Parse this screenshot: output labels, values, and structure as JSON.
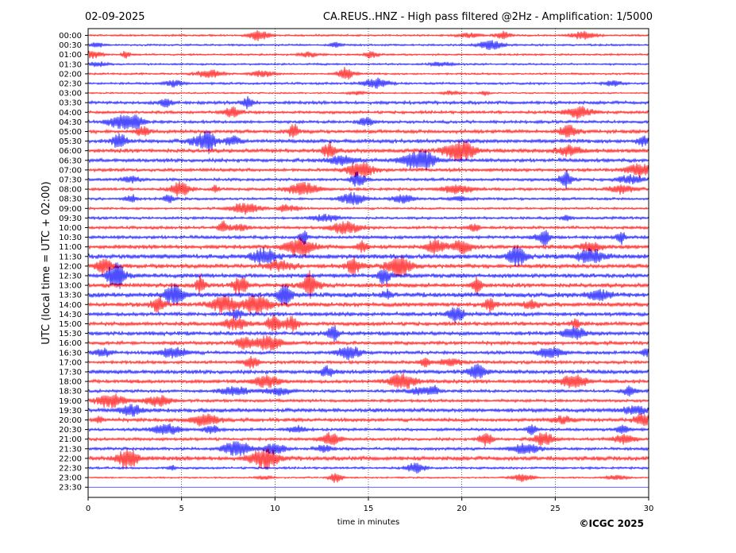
{
  "header": {
    "date": "02-09-2025",
    "title": "CA.REUS..HNZ - High pass filtered @2Hz - Amplification: 1/5000"
  },
  "footer": {
    "copyright": "©ICGC 2025"
  },
  "chart_data": {
    "type": "line",
    "title": "CA.REUS..HNZ - High pass filtered @2Hz - Amplification: 1/5000",
    "xlabel": "time in minutes",
    "ylabel": "UTC (local time = UTC + 02:00)",
    "xlim": [
      0,
      30
    ],
    "x_ticks": [
      0,
      5,
      10,
      15,
      20,
      25,
      30
    ],
    "grid": "vertical dotted lines every 5 minutes",
    "row_colors": [
      "#ff0000",
      "#0000ff"
    ],
    "rows": [
      {
        "label": "00:00",
        "amp": 0.3
      },
      {
        "label": "00:30",
        "amp": 0.3
      },
      {
        "label": "01:00",
        "amp": 0.3
      },
      {
        "label": "01:30",
        "amp": 0.3
      },
      {
        "label": "02:00",
        "amp": 0.3
      },
      {
        "label": "02:30",
        "amp": 0.35
      },
      {
        "label": "03:00",
        "amp": 0.25
      },
      {
        "label": "03:30",
        "amp": 0.5
      },
      {
        "label": "04:00",
        "amp": 0.45
      },
      {
        "label": "04:30",
        "amp": 0.45
      },
      {
        "label": "05:00",
        "amp": 0.55
      },
      {
        "label": "05:30",
        "amp": 0.6
      },
      {
        "label": "06:00",
        "amp": 0.6
      },
      {
        "label": "06:30",
        "amp": 0.55
      },
      {
        "label": "07:00",
        "amp": 0.5
      },
      {
        "label": "07:30",
        "amp": 0.45
      },
      {
        "label": "08:00",
        "amp": 0.45
      },
      {
        "label": "08:30",
        "amp": 0.4
      },
      {
        "label": "09:00",
        "amp": 0.35
      },
      {
        "label": "09:30",
        "amp": 0.4
      },
      {
        "label": "10:00",
        "amp": 0.45
      },
      {
        "label": "10:30",
        "amp": 0.5
      },
      {
        "label": "11:00",
        "amp": 0.6
      },
      {
        "label": "11:30",
        "amp": 0.7
      },
      {
        "label": "12:00",
        "amp": 0.65
      },
      {
        "label": "12:30",
        "amp": 0.65
      },
      {
        "label": "13:00",
        "amp": 0.65
      },
      {
        "label": "13:30",
        "amp": 0.7
      },
      {
        "label": "14:00",
        "amp": 0.65
      },
      {
        "label": "14:30",
        "amp": 0.6
      },
      {
        "label": "15:00",
        "amp": 0.6
      },
      {
        "label": "15:30",
        "amp": 0.6
      },
      {
        "label": "16:00",
        "amp": 0.55
      },
      {
        "label": "16:30",
        "amp": 0.5
      },
      {
        "label": "17:00",
        "amp": 0.5
      },
      {
        "label": "17:30",
        "amp": 0.6
      },
      {
        "label": "18:00",
        "amp": 0.55
      },
      {
        "label": "18:30",
        "amp": 0.45
      },
      {
        "label": "19:00",
        "amp": 0.45
      },
      {
        "label": "19:30",
        "amp": 0.6
      },
      {
        "label": "20:00",
        "amp": 0.55
      },
      {
        "label": "20:30",
        "amp": 0.45
      },
      {
        "label": "21:00",
        "amp": 0.45
      },
      {
        "label": "21:30",
        "amp": 0.45
      },
      {
        "label": "22:00",
        "amp": 0.65
      },
      {
        "label": "22:30",
        "amp": 0.35
      },
      {
        "label": "23:00",
        "amp": 0.25
      },
      {
        "label": "23:30",
        "amp": 0.0
      }
    ]
  }
}
